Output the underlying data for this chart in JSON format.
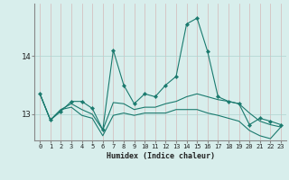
{
  "xlabel": "Humidex (Indice chaleur)",
  "background_color": "#d8eeec",
  "grid_color_h": "#aed4d0",
  "grid_color_v": "#d4b8b8",
  "line_color": "#1a7a6e",
  "x": [
    0,
    1,
    2,
    3,
    4,
    5,
    6,
    7,
    8,
    9,
    10,
    11,
    12,
    13,
    14,
    15,
    16,
    17,
    18,
    19,
    20,
    21,
    22,
    23
  ],
  "series1": [
    13.35,
    12.9,
    13.05,
    13.22,
    13.22,
    13.1,
    12.73,
    14.1,
    13.5,
    13.18,
    13.35,
    13.3,
    13.5,
    13.65,
    14.55,
    14.65,
    14.08,
    13.3,
    13.22,
    13.18,
    12.82,
    12.93,
    12.88,
    12.82
  ],
  "series2": [
    13.35,
    12.9,
    13.08,
    13.18,
    13.08,
    13.0,
    12.73,
    13.2,
    13.18,
    13.08,
    13.12,
    13.12,
    13.18,
    13.22,
    13.3,
    13.35,
    13.3,
    13.25,
    13.22,
    13.18,
    13.02,
    12.88,
    12.82,
    12.78
  ],
  "series3": [
    13.35,
    12.9,
    13.08,
    13.12,
    12.98,
    12.93,
    12.63,
    12.98,
    13.02,
    12.98,
    13.02,
    13.02,
    13.02,
    13.08,
    13.08,
    13.08,
    13.02,
    12.98,
    12.93,
    12.88,
    12.72,
    12.63,
    12.58,
    12.78
  ],
  "ylim": [
    12.55,
    14.9
  ],
  "yticks": [
    13.0,
    14.0
  ],
  "xlim": [
    -0.5,
    23.5
  ],
  "xticks": [
    0,
    1,
    2,
    3,
    4,
    5,
    6,
    7,
    8,
    9,
    10,
    11,
    12,
    13,
    14,
    15,
    16,
    17,
    18,
    19,
    20,
    21,
    22,
    23
  ],
  "marker_size": 2.2,
  "line_width": 0.8
}
